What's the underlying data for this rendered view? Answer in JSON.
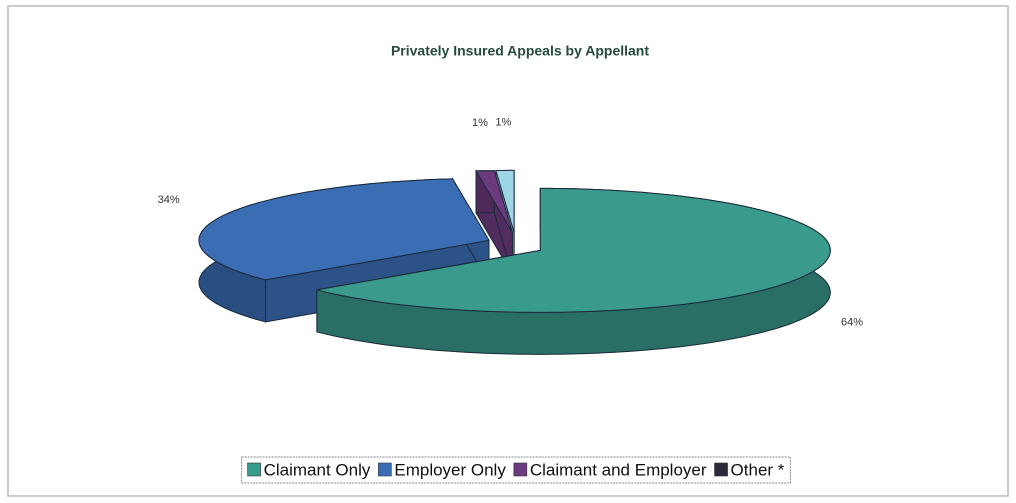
{
  "chart_data": {
    "type": "pie3d",
    "title": "Privately Insured Appeals by Appellant",
    "categories": [
      "Claimant Only",
      "Employer Only",
      "Claimant and Employer",
      "Other *"
    ],
    "values": [
      64,
      34,
      1,
      1
    ],
    "value_labels": [
      "64%",
      "34%",
      "1%",
      "1%"
    ],
    "colors": [
      "#3a9a8c",
      "#3b6db4",
      "#6c3a7e",
      "#9fd6e6"
    ],
    "legend_colors": [
      "#3a9a8c",
      "#3b6db4",
      "#6c3a7e",
      "#2a2a3a"
    ],
    "legend": "bottom"
  }
}
